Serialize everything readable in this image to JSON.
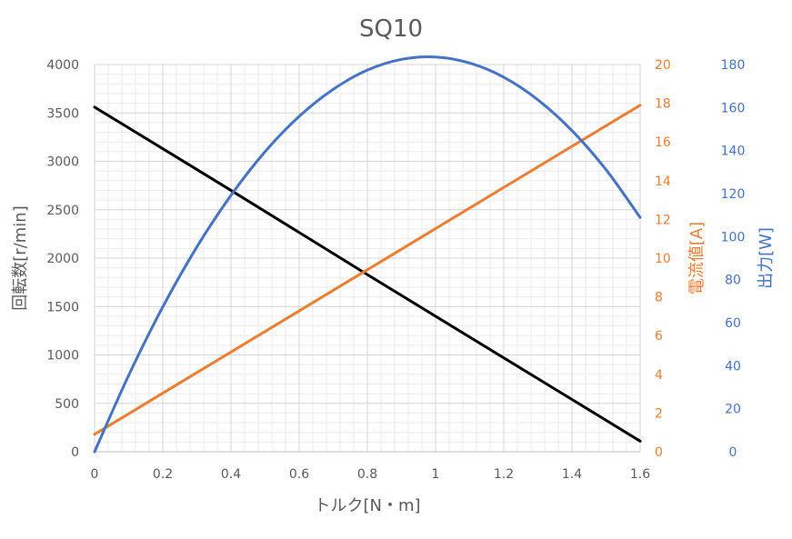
{
  "chart_data": {
    "type": "line",
    "title": "SQ10",
    "xlabel": "トルク[N・m]",
    "xlim": [
      0,
      1.6
    ],
    "x_ticks": [
      "0",
      "0.2",
      "0.4",
      "0.6",
      "0.8",
      "1",
      "1.2",
      "1.4",
      "1.6"
    ],
    "grid": true,
    "legend": "none",
    "axes": {
      "left": {
        "label": "回転数[r/min]",
        "range": [
          0,
          4000
        ],
        "ticks": [
          "0",
          "500",
          "1000",
          "1500",
          "2000",
          "2500",
          "3000",
          "3500",
          "4000"
        ],
        "color": "#595959"
      },
      "right1": {
        "label": "電流値[A]",
        "range": [
          0,
          20
        ],
        "ticks": [
          "0",
          "2",
          "4",
          "6",
          "8",
          "10",
          "12",
          "14",
          "16",
          "18",
          "20"
        ],
        "color": "#ED7D31"
      },
      "right2": {
        "label": "出力[W]",
        "range": [
          0,
          180
        ],
        "ticks": [
          "0",
          "20",
          "40",
          "60",
          "80",
          "100",
          "120",
          "140",
          "160",
          "180"
        ],
        "color": "#4472C4"
      }
    },
    "series": [
      {
        "axis": "left",
        "color": "#000000",
        "x": [
          0,
          0.4,
          0.8,
          1.2,
          1.6
        ],
        "values": [
          3560,
          2700,
          1830,
          970,
          110
        ]
      },
      {
        "axis": "right1",
        "color": "#ED7D31",
        "x": [
          0,
          0.4,
          0.8,
          1.2,
          1.6
        ],
        "values": [
          0.9,
          5.15,
          9.4,
          13.65,
          17.9
        ]
      },
      {
        "axis": "right2",
        "color": "#4472C4",
        "x": [
          0,
          0.1,
          0.2,
          0.3,
          0.4,
          0.5,
          0.6,
          0.7,
          0.8,
          0.9,
          1.0,
          1.1,
          1.2,
          1.3,
          1.4,
          1.5,
          1.6
        ],
        "values": [
          0,
          35.5,
          67.3,
          95.2,
          119.2,
          139.5,
          155.9,
          168.5,
          177.4,
          182.4,
          183.5,
          180.7,
          174.1,
          163.6,
          149.3,
          131.1,
          108.9
        ]
      }
    ]
  }
}
